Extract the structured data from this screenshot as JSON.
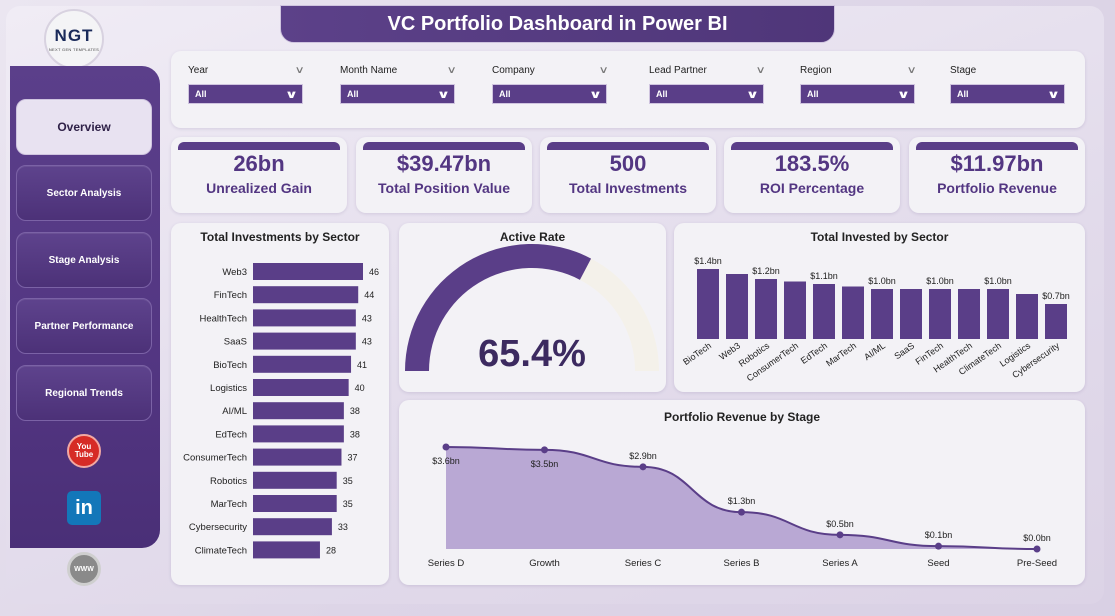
{
  "title": "VC Portfolio Dashboard in Power BI",
  "logo": {
    "mark": "NGT",
    "subtitle": "NEXT GEN TEMPLATES"
  },
  "nav": [
    {
      "label": "Overview",
      "active": true
    },
    {
      "label": "Sector Analysis",
      "active": false
    },
    {
      "label": "Stage Analysis",
      "active": false
    },
    {
      "label": "Partner Performance",
      "active": false
    },
    {
      "label": "Regional Trends",
      "active": false
    }
  ],
  "social": {
    "youtube_top": "You",
    "youtube_bottom": "Tube",
    "linkedin": "in",
    "web": "WWW"
  },
  "filters": [
    {
      "label": "Year",
      "value": "All"
    },
    {
      "label": "Month Name",
      "value": "All"
    },
    {
      "label": "Company",
      "value": "All"
    },
    {
      "label": "Lead Partner",
      "value": "All"
    },
    {
      "label": "Region",
      "value": "All"
    },
    {
      "label": "Stage",
      "value": "All"
    }
  ],
  "kpis": [
    {
      "value": "26bn",
      "label": "Unrealized Gain"
    },
    {
      "value": "$39.47bn",
      "label": "Total Position Value"
    },
    {
      "value": "500",
      "label": "Total Investments"
    },
    {
      "value": "183.5%",
      "label": "ROI Percentage"
    },
    {
      "value": "$11.97bn",
      "label": "Portfolio Revenue"
    }
  ],
  "colors": {
    "accent": "#533682",
    "bar": "#5a3e88",
    "gauge_track": "#f4f1ea",
    "area": "#b9a8d4"
  },
  "chart_data": [
    {
      "type": "bar",
      "orientation": "horizontal",
      "title": "Total Investments by Sector",
      "categories": [
        "Web3",
        "FinTech",
        "HealthTech",
        "SaaS",
        "BioTech",
        "Logistics",
        "AI/ML",
        "EdTech",
        "ConsumerTech",
        "Robotics",
        "MarTech",
        "Cybersecurity",
        "ClimateTech"
      ],
      "values": [
        46,
        44,
        43,
        43,
        41,
        40,
        38,
        38,
        37,
        35,
        35,
        33,
        28
      ],
      "xlim": [
        0,
        46
      ]
    },
    {
      "type": "gauge",
      "title": "Active Rate",
      "value": 65.4,
      "display": "65.4%",
      "range": [
        0,
        100
      ]
    },
    {
      "type": "bar",
      "title": "Total Invested by Sector",
      "categories": [
        "BioTech",
        "Web3",
        "Robotics",
        "ConsumerTech",
        "EdTech",
        "MarTech",
        "AI/ML",
        "SaaS",
        "FinTech",
        "HealthTech",
        "ClimateTech",
        "Logistics",
        "Cybersecurity"
      ],
      "values": [
        1.4,
        1.3,
        1.2,
        1.15,
        1.1,
        1.05,
        1.0,
        1.0,
        1.0,
        1.0,
        1.0,
        0.9,
        0.7
      ],
      "data_labels": [
        "$1.4bn",
        "",
        "$1.2bn",
        "",
        "$1.1bn",
        "",
        "$1.0bn",
        "",
        "$1.0bn",
        "",
        "$1.0bn",
        "",
        "$0.7bn"
      ],
      "ylim": [
        0,
        1.4
      ]
    },
    {
      "type": "area",
      "title": "Portfolio Revenue by Stage",
      "categories": [
        "Series D",
        "Growth",
        "Series C",
        "Series B",
        "Series A",
        "Seed",
        "Pre-Seed"
      ],
      "values": [
        3.6,
        3.5,
        2.9,
        1.3,
        0.5,
        0.1,
        0.0
      ],
      "data_labels": [
        "$3.6bn",
        "$3.5bn",
        "$2.9bn",
        "$1.3bn",
        "$0.5bn",
        "$0.1bn",
        "$0.0bn"
      ],
      "ylim": [
        0,
        3.6
      ]
    }
  ]
}
